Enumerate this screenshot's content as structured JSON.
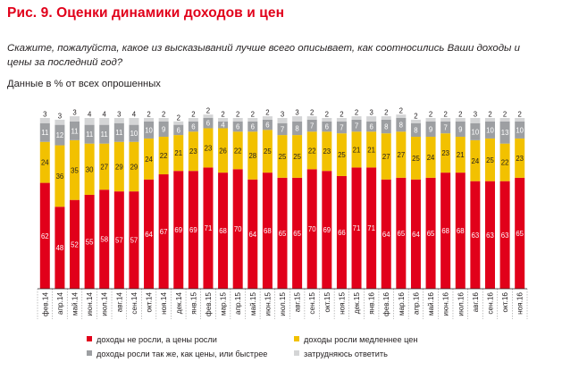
{
  "title": "Рис. 9. Оценки динамики доходов и цен",
  "question": "Скажите, пожалуйста, какое из высказываний лучше всего описывает, как соотносились Ваши доходы и цены за последний год?",
  "note": "Данные в % от всех опрошенных",
  "chart_data": {
    "type": "bar",
    "stacked": true,
    "categories": [
      "фев.14",
      "апр.14",
      "май.14",
      "июн.14",
      "июл.14",
      "авг.14",
      "сен.14",
      "окт.14",
      "ноя.14",
      "дек.14",
      "янв.15",
      "фев.15",
      "мар.15",
      "апр.15",
      "май.15",
      "июн.15",
      "июл.15",
      "авг.15",
      "сен.15",
      "окт.15",
      "ноя.15",
      "дек.15",
      "янв.16",
      "фев.16",
      "мар.16",
      "апр.16",
      "май.16",
      "июн.16",
      "июл.16",
      "авг.16",
      "сен.16",
      "окт.16",
      "ноя.16"
    ],
    "series": [
      {
        "name": "доходы не росли, а цены росли",
        "color": "#e1001a",
        "values": [
          62,
          48,
          52,
          55,
          58,
          57,
          57,
          64,
          67,
          69,
          69,
          71,
          68,
          70,
          64,
          68,
          65,
          65,
          70,
          69,
          66,
          71,
          71,
          64,
          65,
          64,
          65,
          68,
          68,
          63,
          63,
          63,
          65
        ]
      },
      {
        "name": "доходы росли медленнее цен",
        "color": "#f2c100",
        "values": [
          24,
          36,
          35,
          30,
          27,
          29,
          29,
          24,
          22,
          21,
          23,
          23,
          26,
          22,
          28,
          25,
          25,
          25,
          22,
          23,
          25,
          21,
          21,
          27,
          27,
          25,
          24,
          23,
          21,
          24,
          25,
          22,
          23
        ]
      },
      {
        "name": "доходы росли так же, как цены, или быстрее",
        "color": "#9d9fa2",
        "values": [
          11,
          12,
          11,
          11,
          11,
          11,
          10,
          10,
          9,
          6,
          6,
          6,
          4,
          6,
          6,
          6,
          7,
          8,
          7,
          6,
          7,
          7,
          6,
          8,
          8,
          8,
          9,
          7,
          9,
          10,
          10,
          13,
          10
        ]
      },
      {
        "name": "затрудняюсь ответить",
        "color": "#d4d5d6",
        "values": [
          3,
          3,
          3,
          4,
          4,
          3,
          4,
          2,
          2,
          2,
          2,
          2,
          2,
          2,
          2,
          2,
          3,
          3,
          2,
          2,
          2,
          2,
          3,
          2,
          2,
          2,
          2,
          2,
          2,
          3,
          2,
          2,
          2
        ]
      }
    ],
    "ylim": [
      0,
      100
    ],
    "legend_position": "bottom"
  }
}
